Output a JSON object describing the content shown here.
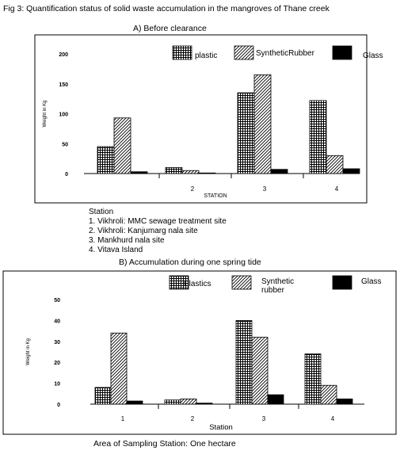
{
  "figure": {
    "title": "Fig 3: Quantification status of solid waste accumulation in the mangroves of Thane creek",
    "station_key_heading": "Station",
    "station_key": [
      "1. Vikhroli: MMC sewage treatment site",
      "2. Vikhroli: Kanjumarg nala site",
      "3. Mankhurd nala site",
      "4. Vitava Island"
    ],
    "footer": "Area of Sampling Station: One hectare"
  },
  "chart_data": [
    {
      "type": "bar",
      "subtitle": "A) Before clearance",
      "xlabel": "STATION",
      "ylabel": "Weight in Kg",
      "categories": [
        "",
        "2",
        "3",
        "4"
      ],
      "ylim": [
        0,
        200
      ],
      "yticks": [
        "0",
        "50",
        "100",
        "150",
        "200"
      ],
      "grid": false,
      "legend_position": "top",
      "series": [
        {
          "name": "plastic",
          "values": [
            45,
            10,
            135,
            122
          ],
          "pattern": "grid"
        },
        {
          "name": "SyntheticRubber",
          "values": [
            93,
            5,
            165,
            30
          ],
          "pattern": "diagonal"
        },
        {
          "name": "Glass",
          "values": [
            3,
            1,
            7,
            8
          ],
          "pattern": "solid"
        }
      ]
    },
    {
      "type": "bar",
      "subtitle": "B) Accumulation during one spring tide",
      "xlabel": "Station",
      "ylabel": "Weight in Kg",
      "categories": [
        "1",
        "2",
        "3",
        "4"
      ],
      "ylim": [
        0,
        50
      ],
      "yticks": [
        "0",
        "10",
        "20",
        "30",
        "40",
        "50"
      ],
      "grid": false,
      "legend_position": "top",
      "series": [
        {
          "name": "Plastics",
          "values": [
            8,
            2,
            40,
            24
          ],
          "pattern": "grid"
        },
        {
          "name": "Synthetic rubber",
          "values": [
            34,
            2.5,
            32,
            9
          ],
          "pattern": "diagonal"
        },
        {
          "name": "Glass",
          "values": [
            1.5,
            0.5,
            4.5,
            2.5
          ],
          "pattern": "solid"
        }
      ]
    }
  ]
}
